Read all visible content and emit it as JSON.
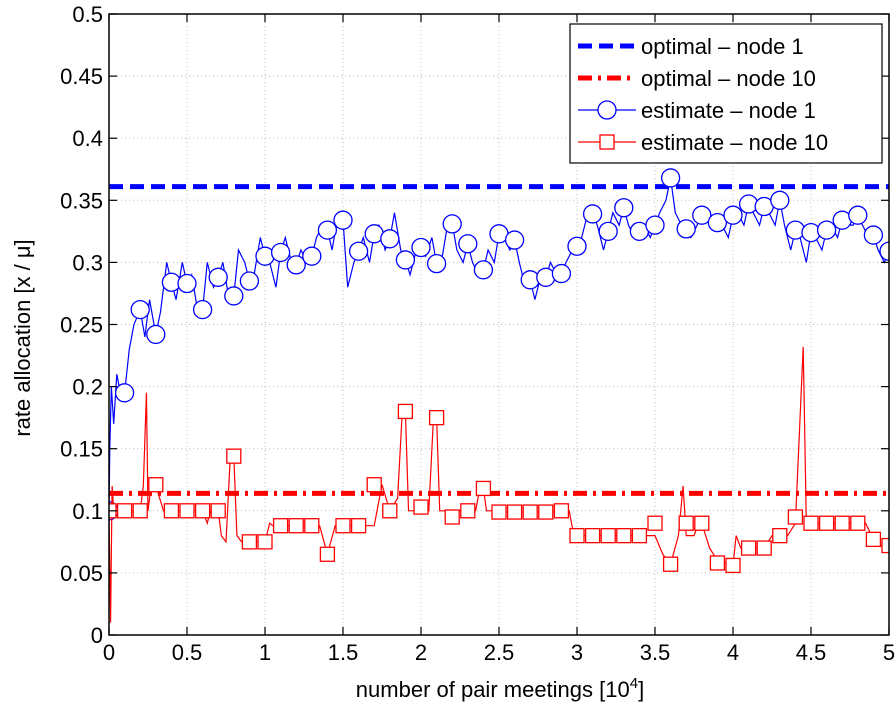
{
  "chart_data": {
    "type": "line",
    "xlabel": "number of pair meetings [10",
    "xlabel_sup": "4",
    "xlabel_end": "]",
    "ylabel": "rate allocation [x / μ]",
    "xlim": [
      0,
      5
    ],
    "ylim": [
      0,
      0.5
    ],
    "grid": true,
    "legend_position": "top-right",
    "x_ticks": [
      "0",
      "0.5",
      "1",
      "1.5",
      "2",
      "2.5",
      "3",
      "3.5",
      "4",
      "4.5",
      "5"
    ],
    "y_ticks": [
      "0",
      "0.05",
      "0.1",
      "0.15",
      "0.2",
      "0.25",
      "0.3",
      "0.35",
      "0.4",
      "0.45",
      "0.5"
    ],
    "series": [
      {
        "name": "optimal – node 1",
        "style": "dashed",
        "color": "#0000ff",
        "x": [
          0,
          5
        ],
        "y": [
          0.361,
          0.361
        ]
      },
      {
        "name": "optimal – node 10",
        "style": "dashdot",
        "color": "#ff0000",
        "x": [
          0,
          5
        ],
        "y": [
          0.114,
          0.114
        ]
      },
      {
        "name": "estimate – node 1",
        "style": "solid-circle",
        "color": "#0000ff",
        "x": [
          0,
          0.005,
          0.015,
          0.03,
          0.05,
          0.08,
          0.1,
          0.13,
          0.16,
          0.2,
          0.23,
          0.26,
          0.3,
          0.33,
          0.37,
          0.4,
          0.43,
          0.47,
          0.5,
          0.53,
          0.57,
          0.6,
          0.63,
          0.67,
          0.7,
          0.73,
          0.77,
          0.8,
          0.83,
          0.87,
          0.9,
          0.93,
          0.97,
          1.0,
          1.03,
          1.07,
          1.1,
          1.13,
          1.17,
          1.2,
          1.23,
          1.27,
          1.3,
          1.33,
          1.37,
          1.4,
          1.43,
          1.47,
          1.5,
          1.53,
          1.57,
          1.6,
          1.63,
          1.67,
          1.7,
          1.73,
          1.77,
          1.8,
          1.83,
          1.87,
          1.9,
          1.93,
          1.97,
          2.0,
          2.03,
          2.07,
          2.1,
          2.13,
          2.17,
          2.2,
          2.23,
          2.27,
          2.3,
          2.33,
          2.37,
          2.4,
          2.43,
          2.47,
          2.5,
          2.53,
          2.57,
          2.6,
          2.63,
          2.67,
          2.7,
          2.73,
          2.77,
          2.8,
          2.83,
          2.87,
          2.9,
          2.93,
          2.97,
          3.0,
          3.03,
          3.07,
          3.1,
          3.13,
          3.17,
          3.2,
          3.23,
          3.27,
          3.3,
          3.33,
          3.37,
          3.4,
          3.43,
          3.47,
          3.5,
          3.53,
          3.57,
          3.6,
          3.63,
          3.67,
          3.7,
          3.73,
          3.77,
          3.8,
          3.83,
          3.87,
          3.9,
          3.93,
          3.97,
          4.0,
          4.03,
          4.07,
          4.1,
          4.13,
          4.17,
          4.2,
          4.23,
          4.27,
          4.3,
          4.33,
          4.37,
          4.4,
          4.43,
          4.47,
          4.5,
          4.53,
          4.57,
          4.6,
          4.63,
          4.67,
          4.7,
          4.73,
          4.77,
          4.8,
          4.83,
          4.87,
          4.9,
          4.93,
          4.97,
          5.0
        ],
        "y": [
          0.1,
          0.15,
          0.2,
          0.17,
          0.21,
          0.19,
          0.195,
          0.23,
          0.25,
          0.262,
          0.24,
          0.27,
          0.242,
          0.26,
          0.3,
          0.284,
          0.27,
          0.3,
          0.283,
          0.29,
          0.26,
          0.262,
          0.3,
          0.28,
          0.288,
          0.3,
          0.27,
          0.273,
          0.31,
          0.3,
          0.285,
          0.29,
          0.32,
          0.305,
          0.3,
          0.28,
          0.308,
          0.32,
          0.3,
          0.298,
          0.31,
          0.3,
          0.305,
          0.32,
          0.33,
          0.326,
          0.31,
          0.34,
          0.334,
          0.28,
          0.3,
          0.309,
          0.32,
          0.3,
          0.323,
          0.33,
          0.31,
          0.319,
          0.34,
          0.31,
          0.302,
          0.29,
          0.31,
          0.312,
          0.305,
          0.32,
          0.299,
          0.3,
          0.33,
          0.331,
          0.31,
          0.3,
          0.315,
          0.3,
          0.29,
          0.294,
          0.31,
          0.3,
          0.323,
          0.32,
          0.31,
          0.318,
          0.3,
          0.28,
          0.286,
          0.27,
          0.29,
          0.288,
          0.3,
          0.29,
          0.291,
          0.3,
          0.31,
          0.313,
          0.32,
          0.34,
          0.339,
          0.33,
          0.31,
          0.325,
          0.34,
          0.33,
          0.344,
          0.33,
          0.32,
          0.325,
          0.33,
          0.32,
          0.33,
          0.34,
          0.35,
          0.368,
          0.34,
          0.33,
          0.327,
          0.32,
          0.33,
          0.338,
          0.34,
          0.33,
          0.332,
          0.33,
          0.32,
          0.338,
          0.34,
          0.33,
          0.347,
          0.34,
          0.33,
          0.345,
          0.34,
          0.33,
          0.35,
          0.33,
          0.31,
          0.326,
          0.32,
          0.3,
          0.324,
          0.32,
          0.31,
          0.326,
          0.33,
          0.32,
          0.334,
          0.33,
          0.33,
          0.338,
          0.33,
          0.32,
          0.322,
          0.31,
          0.3,
          0.309
        ],
        "marker_x": [
          0,
          0.1,
          0.2,
          0.3,
          0.4,
          0.5,
          0.6,
          0.7,
          0.8,
          0.9,
          1.0,
          1.1,
          1.2,
          1.3,
          1.4,
          1.5,
          1.6,
          1.7,
          1.8,
          1.9,
          2.0,
          2.1,
          2.2,
          2.3,
          2.4,
          2.5,
          2.6,
          2.7,
          2.8,
          2.9,
          3.0,
          3.1,
          3.2,
          3.3,
          3.4,
          3.5,
          3.6,
          3.7,
          3.8,
          3.9,
          4.0,
          4.1,
          4.2,
          4.3,
          4.4,
          4.5,
          4.6,
          4.7,
          4.8,
          4.9,
          5.0
        ],
        "marker_y": [
          0.1,
          0.195,
          0.262,
          0.242,
          0.284,
          0.283,
          0.262,
          0.288,
          0.273,
          0.285,
          0.305,
          0.308,
          0.298,
          0.305,
          0.326,
          0.334,
          0.309,
          0.323,
          0.319,
          0.302,
          0.312,
          0.299,
          0.331,
          0.315,
          0.294,
          0.323,
          0.318,
          0.286,
          0.288,
          0.291,
          0.313,
          0.339,
          0.325,
          0.344,
          0.325,
          0.33,
          0.368,
          0.327,
          0.338,
          0.332,
          0.338,
          0.347,
          0.345,
          0.35,
          0.326,
          0.324,
          0.326,
          0.334,
          0.338,
          0.322,
          0.309
        ]
      },
      {
        "name": "estimate – node 10",
        "style": "solid-square",
        "color": "#ff0000",
        "x": [
          0,
          0.01,
          0.02,
          0.03,
          0.04,
          0.1,
          0.15,
          0.2,
          0.22,
          0.24,
          0.25,
          0.27,
          0.28,
          0.3,
          0.35,
          0.4,
          0.45,
          0.5,
          0.55,
          0.6,
          0.63,
          0.65,
          0.7,
          0.72,
          0.75,
          0.78,
          0.8,
          0.82,
          0.85,
          0.9,
          0.95,
          1.0,
          1.03,
          1.05,
          1.1,
          1.15,
          1.2,
          1.25,
          1.3,
          1.35,
          1.4,
          1.45,
          1.5,
          1.55,
          1.6,
          1.65,
          1.7,
          1.75,
          1.8,
          1.85,
          1.88,
          1.9,
          1.92,
          1.95,
          2.0,
          2.05,
          2.08,
          2.1,
          2.12,
          2.15,
          2.2,
          2.25,
          2.3,
          2.35,
          2.38,
          2.4,
          2.42,
          2.45,
          2.5,
          2.55,
          2.6,
          2.65,
          2.7,
          2.75,
          2.8,
          2.85,
          2.9,
          2.95,
          2.98,
          3.0,
          3.05,
          3.1,
          3.15,
          3.2,
          3.25,
          3.3,
          3.35,
          3.4,
          3.45,
          3.5,
          3.55,
          3.58,
          3.6,
          3.65,
          3.68,
          3.7,
          3.75,
          3.78,
          3.8,
          3.85,
          3.9,
          3.95,
          4.0,
          4.02,
          4.05,
          4.1,
          4.15,
          4.2,
          4.25,
          4.3,
          4.35,
          4.4,
          4.45,
          4.47,
          4.5,
          4.55,
          4.6,
          4.65,
          4.7,
          4.75,
          4.8,
          4.85,
          4.9,
          4.95,
          5.0
        ],
        "y": [
          0.1,
          0.01,
          0.12,
          0.1,
          0.1,
          0.1,
          0.1,
          0.1,
          0.12,
          0.195,
          0.1,
          0.12,
          0.12,
          0.12,
          0.1,
          0.1,
          0.1,
          0.1,
          0.1,
          0.1,
          0.09,
          0.1,
          0.1,
          0.08,
          0.075,
          0.15,
          0.144,
          0.08,
          0.075,
          0.075,
          0.075,
          0.075,
          0.09,
          0.088,
          0.088,
          0.088,
          0.088,
          0.088,
          0.088,
          0.088,
          0.065,
          0.088,
          0.088,
          0.088,
          0.088,
          0.088,
          0.088,
          0.121,
          0.1,
          0.11,
          0.18,
          0.18,
          0.1,
          0.1,
          0.1,
          0.1,
          0.175,
          0.175,
          0.1,
          0.1,
          0.095,
          0.1,
          0.1,
          0.1,
          0.12,
          0.118,
          0.1,
          0.1,
          0.099,
          0.099,
          0.099,
          0.099,
          0.099,
          0.099,
          0.099,
          0.099,
          0.099,
          0.1,
          0.08,
          0.08,
          0.08,
          0.08,
          0.08,
          0.08,
          0.08,
          0.08,
          0.08,
          0.08,
          0.08,
          0.08,
          0.065,
          0.06,
          0.057,
          0.08,
          0.12,
          0.08,
          0.08,
          0.09,
          0.09,
          0.07,
          0.06,
          0.058,
          0.056,
          0.08,
          0.07,
          0.07,
          0.07,
          0.07,
          0.08,
          0.08,
          0.08,
          0.09,
          0.232,
          0.09,
          0.09,
          0.09,
          0.09,
          0.09,
          0.09,
          0.09,
          0.09,
          0.09,
          0.077,
          0.072,
          0.072
        ],
        "marker_x": [
          0,
          0.1,
          0.2,
          0.3,
          0.4,
          0.5,
          0.6,
          0.7,
          0.8,
          0.9,
          1.0,
          1.1,
          1.2,
          1.3,
          1.4,
          1.5,
          1.6,
          1.7,
          1.8,
          1.9,
          2.0,
          2.1,
          2.2,
          2.3,
          2.4,
          2.5,
          2.6,
          2.7,
          2.8,
          2.9,
          3.0,
          3.1,
          3.2,
          3.3,
          3.4,
          3.5,
          3.6,
          3.7,
          3.8,
          3.9,
          4.0,
          4.1,
          4.2,
          4.3,
          4.4,
          4.5,
          4.6,
          4.7,
          4.8,
          4.9,
          5.0
        ],
        "marker_y": [
          0.1,
          0.1,
          0.1,
          0.121,
          0.1,
          0.1,
          0.1,
          0.1,
          0.144,
          0.075,
          0.075,
          0.088,
          0.088,
          0.088,
          0.065,
          0.088,
          0.088,
          0.121,
          0.1,
          0.18,
          0.103,
          0.175,
          0.095,
          0.1,
          0.118,
          0.099,
          0.099,
          0.099,
          0.099,
          0.1,
          0.08,
          0.08,
          0.08,
          0.08,
          0.08,
          0.09,
          0.057,
          0.09,
          0.09,
          0.058,
          0.056,
          0.07,
          0.07,
          0.08,
          0.095,
          0.09,
          0.09,
          0.09,
          0.09,
          0.077,
          0.072
        ]
      }
    ]
  }
}
